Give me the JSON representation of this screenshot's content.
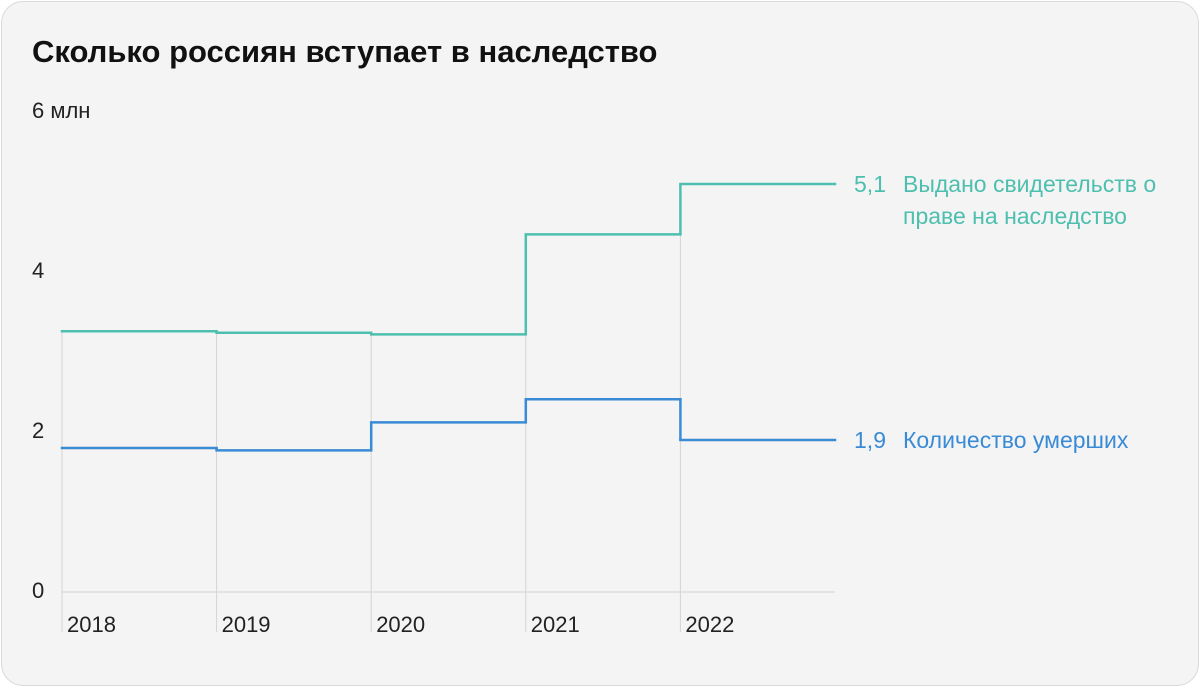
{
  "chart_data": {
    "type": "step",
    "title": "Сколько россиян вступает в наследство",
    "categories": [
      "2018",
      "2019",
      "2020",
      "2021",
      "2022"
    ],
    "series": [
      {
        "name": "Выдано свидетельств о праве на наследство",
        "color": "#4dbfae",
        "values": [
          3.26,
          3.24,
          3.22,
          4.47,
          5.1
        ],
        "value_labels": [
          null,
          null,
          null,
          null,
          "5,1"
        ]
      },
      {
        "name": "Количество умерших",
        "color": "#3a8bd6",
        "values": [
          1.8,
          1.77,
          2.12,
          2.41,
          1.9
        ],
        "value_labels": [
          null,
          null,
          null,
          null,
          "1,9"
        ]
      }
    ],
    "ylim": [
      0,
      6
    ],
    "yticks": [
      0,
      2,
      4,
      {
        "value": 6,
        "label": "6 млн"
      }
    ]
  }
}
